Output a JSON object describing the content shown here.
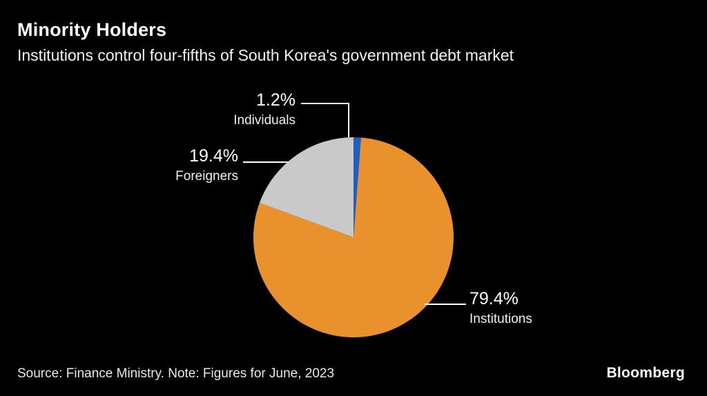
{
  "header": {
    "title": "Minority Holders",
    "subtitle": "Institutions control four-fifths of South Korea's government debt market"
  },
  "footer": {
    "source": "Source: Finance Ministry. Note: Figures for June, 2023",
    "brand": "Bloomberg"
  },
  "chart_data": {
    "type": "pie",
    "title": "Minority Holders",
    "subtitle": "Institutions control four-fifths of South Korea's government debt market",
    "start_angle_deg": 0,
    "direction": "clockwise",
    "order_note": "slices drawn clockwise starting at 12 o'clock",
    "slices": [
      {
        "label": "Individuals",
        "value_pct": 1.2,
        "display": "1.2%",
        "color": "#1f5ec2"
      },
      {
        "label": "Institutions",
        "value_pct": 79.4,
        "display": "79.4%",
        "color": "#e8912d"
      },
      {
        "label": "Foreigners",
        "value_pct": 19.4,
        "display": "19.4%",
        "color": "#c9c9c9"
      }
    ],
    "legend": "none",
    "source_note": "Source: Finance Ministry. Note: Figures for June, 2023"
  }
}
